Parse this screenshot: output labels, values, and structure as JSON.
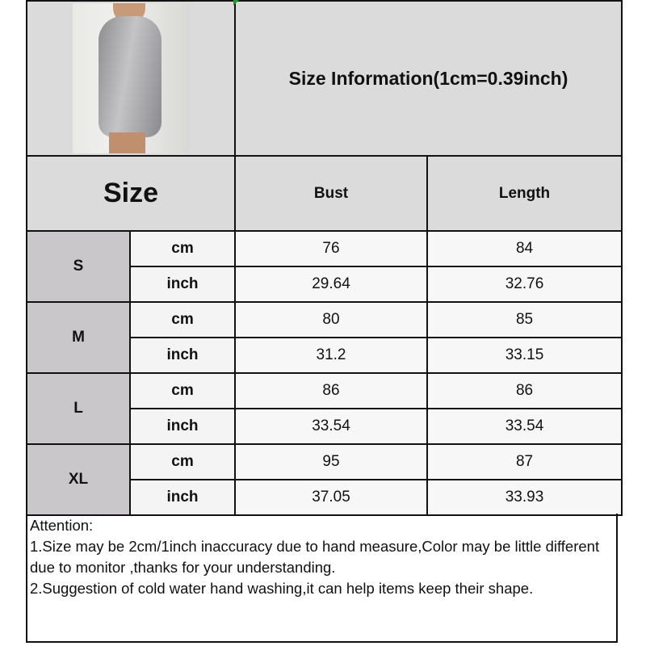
{
  "title": "Size Information(1cm=0.39inch)",
  "size_header": "Size",
  "columns": [
    "Bust",
    "Length"
  ],
  "rows": [
    {
      "size": "S",
      "cm": {
        "unit": "cm",
        "bust": "76",
        "length": "84"
      },
      "inch": {
        "unit": "inch",
        "bust": "29.64",
        "length": "32.76"
      }
    },
    {
      "size": "M",
      "cm": {
        "unit": "cm",
        "bust": "80",
        "length": "85"
      },
      "inch": {
        "unit": "inch",
        "bust": "31.2",
        "length": "33.15"
      }
    },
    {
      "size": "L",
      "cm": {
        "unit": "cm",
        "bust": "86",
        "length": "86"
      },
      "inch": {
        "unit": "inch",
        "bust": "33.54",
        "length": "33.54"
      }
    },
    {
      "size": "XL",
      "cm": {
        "unit": "cm",
        "bust": "95",
        "length": "87"
      },
      "inch": {
        "unit": "inch",
        "bust": "37.05",
        "length": "33.93"
      }
    }
  ],
  "attention": {
    "heading": "Attention:",
    "lines": [
      "1.Size may be 2cm/1inch inaccuracy due to hand measure,Color may be little different due to monitor ,thanks for your understanding.",
      "2.Suggestion of cold water hand washing,it can help items keep their shape."
    ]
  },
  "colors": {
    "header_bg": "#dcdbdc",
    "size_label_bg": "#c9c7c9",
    "cell_bg": "#f7f7f7",
    "border": "#111111"
  }
}
